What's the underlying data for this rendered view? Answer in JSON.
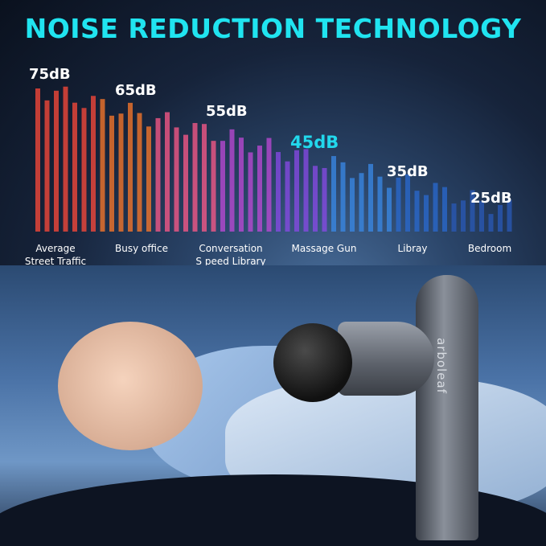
{
  "title": "NOISE REDUCTION TECHNOLOGY",
  "levels": [
    {
      "db": "75dB",
      "label1": "Average",
      "label2": "Street Traffic"
    },
    {
      "db": "65dB",
      "label1": "Busy office",
      "label2": ""
    },
    {
      "db": "55dB",
      "label1": "Conversation",
      "label2": "S peed Library"
    },
    {
      "db": "45dB",
      "label1": "Massage Gun",
      "label2": ""
    },
    {
      "db": "35dB",
      "label1": "Libray",
      "label2": ""
    },
    {
      "db": "25dB",
      "label1": "Bedroom",
      "label2": ""
    }
  ],
  "brand": "arboleaf",
  "colors": {
    "title": "#20e4f0",
    "highlight": "#22d8ec"
  }
}
